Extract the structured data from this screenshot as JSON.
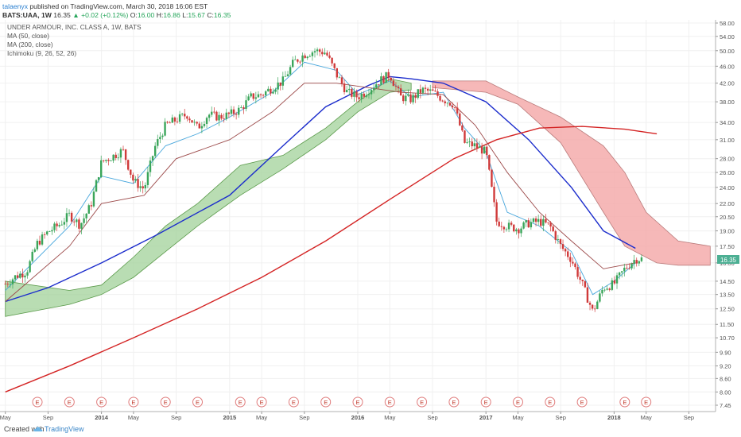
{
  "header": {
    "author": "talaenyx",
    "published": "published on TradingView.com, March 30, 2018 16:06 EST",
    "symbol": "BATS:UAA, 1W",
    "last": "16.35",
    "change": "+0.02 (+0.12%)",
    "open_label": "O:",
    "open": "16.00",
    "high_label": "H:",
    "high": "16.86",
    "low_label": "L:",
    "low": "15.67",
    "close_label": "C:",
    "close": "16.35"
  },
  "legend": {
    "title": "UNDER ARMOUR, INC. CLASS A, 1W, BATS",
    "ma50": "MA (50, close)",
    "ma200": "MA (200, close)",
    "ichimoku": "Ichimoku (9, 26, 52, 26)"
  },
  "footer": {
    "created": "Created with",
    "brand": "TradingView"
  },
  "chart_data": {
    "type": "candlestick",
    "title": "UNDER ARMOUR, INC. CLASS A, 1W, BATS",
    "y_scale": "log",
    "ylim": [
      7.2,
      59
    ],
    "y_ticks": [
      "58.00",
      "54.00",
      "50.00",
      "46.00",
      "42.00",
      "38.00",
      "34.00",
      "31.00",
      "28.00",
      "26.00",
      "24.00",
      "22.00",
      "20.50",
      "19.00",
      "17.50",
      "16.00",
      "14.50",
      "13.50",
      "12.50",
      "11.50",
      "10.70",
      "9.90",
      "9.20",
      "8.60",
      "8.00",
      "7.45"
    ],
    "current_price": "16.35",
    "x_labels": [
      "May",
      "Sep",
      "2014",
      "May",
      "Sep",
      "2015",
      "May",
      "Sep",
      "2016",
      "May",
      "Sep",
      "2017",
      "May",
      "Sep",
      "2018",
      "May",
      "Sep"
    ],
    "x_range": [
      "2013-04",
      "2018-10"
    ],
    "last_bar": "2018-03",
    "earnings_marker": "E",
    "earnings_dates": [
      "2013-07",
      "2013-10",
      "2014-01",
      "2014-04",
      "2014-07",
      "2014-10",
      "2015-02",
      "2015-04",
      "2015-07",
      "2015-10",
      "2016-01",
      "2016-04",
      "2016-07",
      "2016-10",
      "2017-01",
      "2017-04",
      "2017-07",
      "2017-10",
      "2018-02",
      "2018-04"
    ],
    "series": [
      {
        "name": "Close",
        "role": "price",
        "points": [
          [
            "2013-04",
            14.3
          ],
          [
            "2013-05",
            14.9
          ],
          [
            "2013-06",
            15.3
          ],
          [
            "2013-07",
            17.8
          ],
          [
            "2013-08",
            18.9
          ],
          [
            "2013-09",
            19.6
          ],
          [
            "2013-10",
            20.7
          ],
          [
            "2013-11",
            19.6
          ],
          [
            "2013-12",
            21.8
          ],
          [
            "2014-01",
            27.5
          ],
          [
            "2014-02",
            28.3
          ],
          [
            "2014-03",
            29.3
          ],
          [
            "2014-04",
            24.8
          ],
          [
            "2014-05",
            23.8
          ],
          [
            "2014-06",
            29.8
          ],
          [
            "2014-07",
            33.5
          ],
          [
            "2014-08",
            34.5
          ],
          [
            "2014-09",
            35.5
          ],
          [
            "2014-10",
            33.0
          ],
          [
            "2014-11",
            35.5
          ],
          [
            "2014-12",
            35.0
          ],
          [
            "2015-01",
            35.5
          ],
          [
            "2015-02",
            36.5
          ],
          [
            "2015-03",
            39.0
          ],
          [
            "2015-04",
            39.5
          ],
          [
            "2015-05",
            41.0
          ],
          [
            "2015-06",
            42.5
          ],
          [
            "2015-07",
            47.0
          ],
          [
            "2015-08",
            49.0
          ],
          [
            "2015-09",
            50.0
          ],
          [
            "2015-10",
            49.5
          ],
          [
            "2015-11",
            44.0
          ],
          [
            "2015-12",
            40.0
          ],
          [
            "2016-01",
            39.0
          ],
          [
            "2016-02",
            40.5
          ],
          [
            "2016-03",
            42.5
          ],
          [
            "2016-04",
            44.0
          ],
          [
            "2016-05",
            39.0
          ],
          [
            "2016-06",
            38.5
          ],
          [
            "2016-07",
            40.5
          ],
          [
            "2016-08",
            40.0
          ],
          [
            "2016-09",
            38.5
          ],
          [
            "2016-10",
            37.5
          ],
          [
            "2016-11",
            30.5
          ],
          [
            "2016-12",
            30.0
          ],
          [
            "2017-01",
            29.0
          ],
          [
            "2017-02",
            20.0
          ],
          [
            "2017-03",
            19.5
          ],
          [
            "2017-04",
            19.2
          ],
          [
            "2017-05",
            19.8
          ],
          [
            "2017-06",
            20.0
          ],
          [
            "2017-07",
            19.5
          ],
          [
            "2017-08",
            17.5
          ],
          [
            "2017-09",
            16.3
          ],
          [
            "2017-10",
            14.3
          ],
          [
            "2017-11",
            12.3
          ],
          [
            "2017-12",
            14.0
          ],
          [
            "2018-01",
            14.3
          ],
          [
            "2018-02",
            15.5
          ],
          [
            "2018-03",
            16.35
          ]
        ]
      },
      {
        "name": "MA (50, close)",
        "color": "#1b2ccc",
        "points": [
          [
            "2013-04",
            13.0
          ],
          [
            "2013-08",
            14.0
          ],
          [
            "2014-01",
            16.0
          ],
          [
            "2014-06",
            18.5
          ],
          [
            "2015-01",
            23.0
          ],
          [
            "2015-06",
            30.0
          ],
          [
            "2015-10",
            37.0
          ],
          [
            "2016-02",
            41.5
          ],
          [
            "2016-04",
            43.5
          ],
          [
            "2016-06",
            43.0
          ],
          [
            "2016-09",
            42.0
          ],
          [
            "2017-01",
            38.0
          ],
          [
            "2017-05",
            31.0
          ],
          [
            "2017-09",
            24.0
          ],
          [
            "2017-12",
            19.0
          ],
          [
            "2018-03",
            17.3
          ]
        ]
      },
      {
        "name": "MA (200, close)",
        "color": "#d42424",
        "points": [
          [
            "2013-04",
            8.0
          ],
          [
            "2013-10",
            9.2
          ],
          [
            "2014-04",
            10.7
          ],
          [
            "2014-10",
            12.5
          ],
          [
            "2015-04",
            14.8
          ],
          [
            "2015-10",
            18.0
          ],
          [
            "2016-04",
            22.5
          ],
          [
            "2016-10",
            28.0
          ],
          [
            "2017-02",
            31.0
          ],
          [
            "2017-06",
            33.0
          ],
          [
            "2017-10",
            33.3
          ],
          [
            "2018-02",
            32.8
          ],
          [
            "2018-05",
            32.0
          ]
        ]
      },
      {
        "name": "Conversion line",
        "color": "#46a6dc",
        "points": [
          [
            "2013-04",
            13.8
          ],
          [
            "2013-10",
            19.5
          ],
          [
            "2014-01",
            25.5
          ],
          [
            "2014-04",
            24.5
          ],
          [
            "2014-07",
            30.0
          ],
          [
            "2014-10",
            32.0
          ],
          [
            "2015-01",
            35.0
          ],
          [
            "2015-05",
            40.0
          ],
          [
            "2015-08",
            47.0
          ],
          [
            "2015-11",
            45.0
          ],
          [
            "2016-01",
            39.5
          ],
          [
            "2016-04",
            42.5
          ],
          [
            "2016-06",
            39.0
          ],
          [
            "2016-09",
            40.0
          ],
          [
            "2016-11",
            33.0
          ],
          [
            "2017-01",
            29.0
          ],
          [
            "2017-03",
            21.0
          ],
          [
            "2017-06",
            19.5
          ],
          [
            "2017-09",
            17.0
          ],
          [
            "2017-11",
            13.5
          ],
          [
            "2018-01",
            14.5
          ],
          [
            "2018-03",
            16.0
          ]
        ]
      },
      {
        "name": "Base line",
        "color": "#9c4a4a",
        "points": [
          [
            "2013-04",
            13.0
          ],
          [
            "2013-10",
            17.5
          ],
          [
            "2014-01",
            22.0
          ],
          [
            "2014-05",
            23.0
          ],
          [
            "2014-08",
            28.0
          ],
          [
            "2015-01",
            31.0
          ],
          [
            "2015-05",
            36.0
          ],
          [
            "2015-08",
            42.0
          ],
          [
            "2015-11",
            42.0
          ],
          [
            "2016-02",
            41.0
          ],
          [
            "2016-05",
            40.0
          ],
          [
            "2016-09",
            39.5
          ],
          [
            "2016-12",
            33.5
          ],
          [
            "2017-03",
            26.0
          ],
          [
            "2017-06",
            21.0
          ],
          [
            "2017-09",
            18.0
          ],
          [
            "2017-12",
            15.5
          ],
          [
            "2018-03",
            16.0
          ]
        ]
      },
      {
        "name": "Cloud (bullish)",
        "color": "#a8d5a0",
        "upper": [
          [
            "2013-04",
            14.5
          ],
          [
            "2013-10",
            13.8
          ],
          [
            "2014-01",
            14.2
          ],
          [
            "2014-04",
            16.5
          ],
          [
            "2014-07",
            19.5
          ],
          [
            "2014-10",
            22.0
          ],
          [
            "2015-02",
            27.0
          ],
          [
            "2015-06",
            28.5
          ],
          [
            "2015-10",
            33.0
          ],
          [
            "2016-01",
            38.0
          ],
          [
            "2016-04",
            43.0
          ],
          [
            "2016-06",
            42.0
          ]
        ],
        "lower": [
          [
            "2013-04",
            12.0
          ],
          [
            "2013-10",
            12.8
          ],
          [
            "2014-01",
            13.5
          ],
          [
            "2014-04",
            14.8
          ],
          [
            "2014-07",
            17.0
          ],
          [
            "2014-10",
            19.5
          ],
          [
            "2015-02",
            23.0
          ],
          [
            "2015-06",
            26.5
          ],
          [
            "2015-10",
            31.0
          ],
          [
            "2016-01",
            36.0
          ],
          [
            "2016-04",
            40.0
          ],
          [
            "2016-06",
            40.5
          ]
        ]
      },
      {
        "name": "Cloud (bearish)",
        "color": "#f4a6a6",
        "upper": [
          [
            "2016-08",
            42.5
          ],
          [
            "2017-01",
            42.5
          ],
          [
            "2017-04",
            39.0
          ],
          [
            "2017-08",
            35.0
          ],
          [
            "2017-12",
            30.0
          ],
          [
            "2018-02",
            26.0
          ],
          [
            "2018-04",
            21.0
          ],
          [
            "2018-07",
            18.0
          ],
          [
            "2018-10",
            17.5
          ]
        ],
        "lower": [
          [
            "2016-08",
            41.0
          ],
          [
            "2017-01",
            40.0
          ],
          [
            "2017-04",
            37.5
          ],
          [
            "2017-08",
            30.5
          ],
          [
            "2017-12",
            21.0
          ],
          [
            "2018-02",
            17.5
          ],
          [
            "2018-05",
            16.0
          ],
          [
            "2018-07",
            15.8
          ],
          [
            "2018-10",
            15.8
          ]
        ]
      }
    ]
  }
}
